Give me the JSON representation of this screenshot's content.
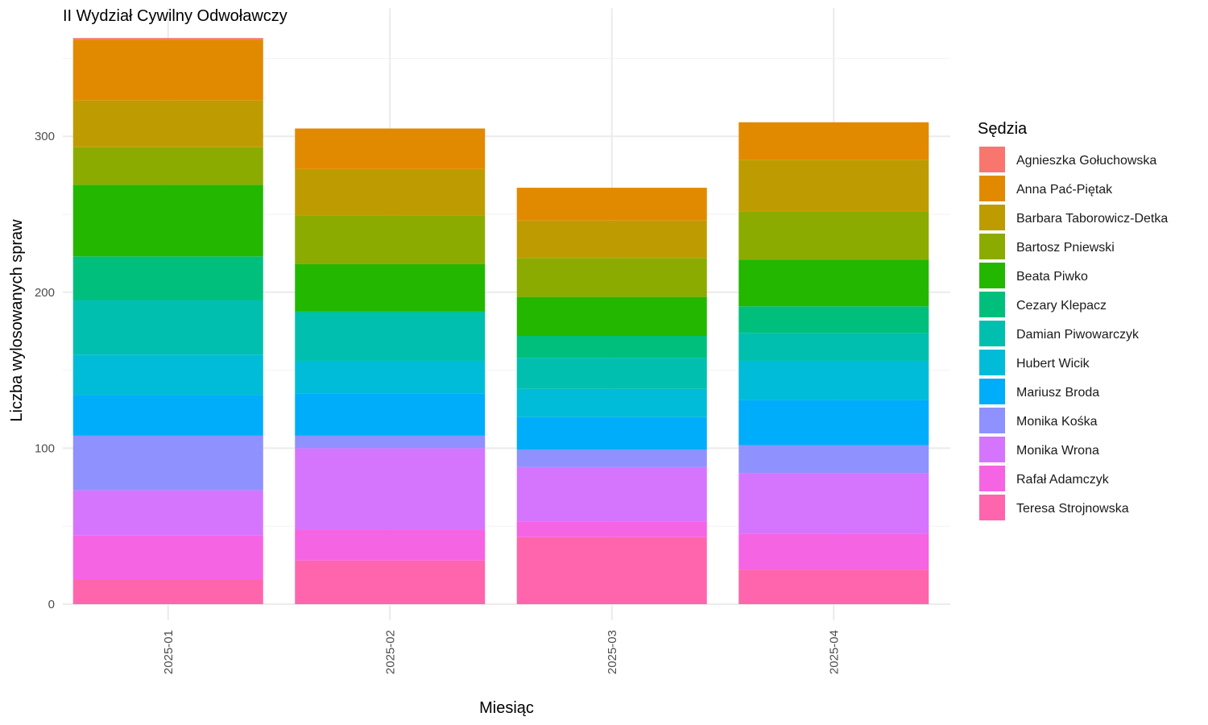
{
  "chart_data": {
    "type": "bar",
    "stacked": true,
    "title": "II Wydział Cywilny Odwoławczy",
    "xlabel": "Miesiąc",
    "ylabel": "Liczba wylosowanych spraw",
    "ylim": [
      0,
      370
    ],
    "y_ticks": [
      0,
      100,
      200,
      300
    ],
    "grid": true,
    "legend_title": "Sędzia",
    "legend_position": "right",
    "categories": [
      "2025-01",
      "2025-02",
      "2025-03",
      "2025-04"
    ],
    "series": [
      {
        "name": "Teresa Strojnowska",
        "color": "#FF65AC",
        "values": [
          16,
          28,
          43,
          22
        ]
      },
      {
        "name": "Rafał Adamczyk",
        "color": "#F564E3",
        "values": [
          28,
          20,
          10,
          23
        ]
      },
      {
        "name": "Monika Wrona",
        "color": "#D575FE",
        "values": [
          29,
          52,
          35,
          39
        ]
      },
      {
        "name": "Monika Kośka",
        "color": "#8F91FF",
        "values": [
          35,
          8,
          11,
          18
        ]
      },
      {
        "name": "Mariusz Broda",
        "color": "#00ADFA",
        "values": [
          26,
          27,
          21,
          29
        ]
      },
      {
        "name": "Hubert Wicik",
        "color": "#00BCD8",
        "values": [
          26,
          21,
          18,
          25
        ]
      },
      {
        "name": "Damian Piwowarczyk",
        "color": "#00BFAF",
        "values": [
          35,
          31,
          20,
          18
        ]
      },
      {
        "name": "Cezary Klepacz",
        "color": "#00BF7D",
        "values": [
          28,
          1,
          14,
          17
        ]
      },
      {
        "name": "Beata Piwko",
        "color": "#24B700",
        "values": [
          46,
          30,
          25,
          30
        ]
      },
      {
        "name": "Bartosz Pniewski",
        "color": "#8CAB00",
        "values": [
          24,
          31,
          25,
          31
        ]
      },
      {
        "name": "Barbara Taborowicz-Detka",
        "color": "#BE9C00",
        "values": [
          30,
          30,
          24,
          33
        ]
      },
      {
        "name": "Anna Pać-Piętak",
        "color": "#E18A00",
        "values": [
          39,
          26,
          21,
          24
        ]
      },
      {
        "name": "Agnieszka Gołuchowska",
        "color": "#F8766D",
        "values": [
          1,
          0,
          0,
          0
        ]
      }
    ]
  }
}
